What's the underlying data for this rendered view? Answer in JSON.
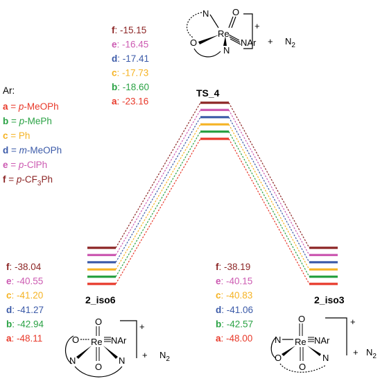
{
  "colors": {
    "a": "#e8392a",
    "b": "#2aa244",
    "c": "#f5b324",
    "d": "#3b5aa8",
    "e": "#cc5bb2",
    "f": "#8c2525"
  },
  "legend": {
    "header": "Ar:",
    "items": [
      {
        "key": "a",
        "sep": " = ",
        "italic": "p",
        "rest": "-MeOPh",
        "sub": ""
      },
      {
        "key": "b",
        "sep": " = ",
        "italic": "p",
        "rest": "-MePh",
        "sub": ""
      },
      {
        "key": "c",
        "sep": " = ",
        "italic": "",
        "rest": "Ph",
        "sub": ""
      },
      {
        "key": "d",
        "sep": " = ",
        "italic": "m",
        "rest": "-MeOPh",
        "sub": ""
      },
      {
        "key": "e",
        "sep": " = ",
        "italic": "p",
        "rest": "-ClPh",
        "sub": ""
      },
      {
        "key": "f",
        "sep": " = ",
        "italic": "p",
        "rest": "-CF",
        "sub": "3",
        "tail": "Ph"
      }
    ]
  },
  "states": {
    "ts4": {
      "name": "TS_4",
      "energies": [
        {
          "key": "f",
          "value": "-15.15"
        },
        {
          "key": "e",
          "value": "-16.45"
        },
        {
          "key": "d",
          "value": "-17.41"
        },
        {
          "key": "c",
          "value": "-17.73"
        },
        {
          "key": "b",
          "value": "-18.60"
        },
        {
          "key": "a",
          "value": "-23.16"
        }
      ]
    },
    "iso6": {
      "name": "2_iso6",
      "energies": [
        {
          "key": "f",
          "value": "-38.04"
        },
        {
          "key": "e",
          "value": "-40.55"
        },
        {
          "key": "c",
          "value": "-41.20"
        },
        {
          "key": "d",
          "value": "-41.27"
        },
        {
          "key": "b",
          "value": "-42.94"
        },
        {
          "key": "a",
          "value": "-48.11"
        }
      ]
    },
    "iso3": {
      "name": "2_iso3",
      "energies": [
        {
          "key": "f",
          "value": "-38.19"
        },
        {
          "key": "e",
          "value": "-40.15"
        },
        {
          "key": "c",
          "value": "-40.83"
        },
        {
          "key": "d",
          "value": "-41.06"
        },
        {
          "key": "b",
          "value": "-42.57"
        },
        {
          "key": "a",
          "value": "-48.00"
        }
      ]
    }
  },
  "structures": {
    "ts4": {
      "re": "Re",
      "o_top": "O",
      "n_left": "N",
      "o_left": "O",
      "n_bottom": "N",
      "nar": "NAr",
      "charge": "+",
      "plus": "+",
      "n2": "N",
      "n2_sub": "2"
    },
    "iso6": {
      "re": "Re",
      "o_top": "O",
      "o_left": "O",
      "o_bottom": "O",
      "n_left": "N",
      "n_right": "N",
      "nar": "NAr",
      "charge": "+",
      "plus": "+",
      "n2": "N",
      "n2_sub": "2"
    },
    "iso3": {
      "re": "Re",
      "o_top": "O",
      "o_bottom": "O",
      "n_left": "N",
      "o_left": "O",
      "n_right": "N",
      "nar": "NAr",
      "charge": "+",
      "plus": "+",
      "n2": "N",
      "n2_sub": "2"
    }
  }
}
